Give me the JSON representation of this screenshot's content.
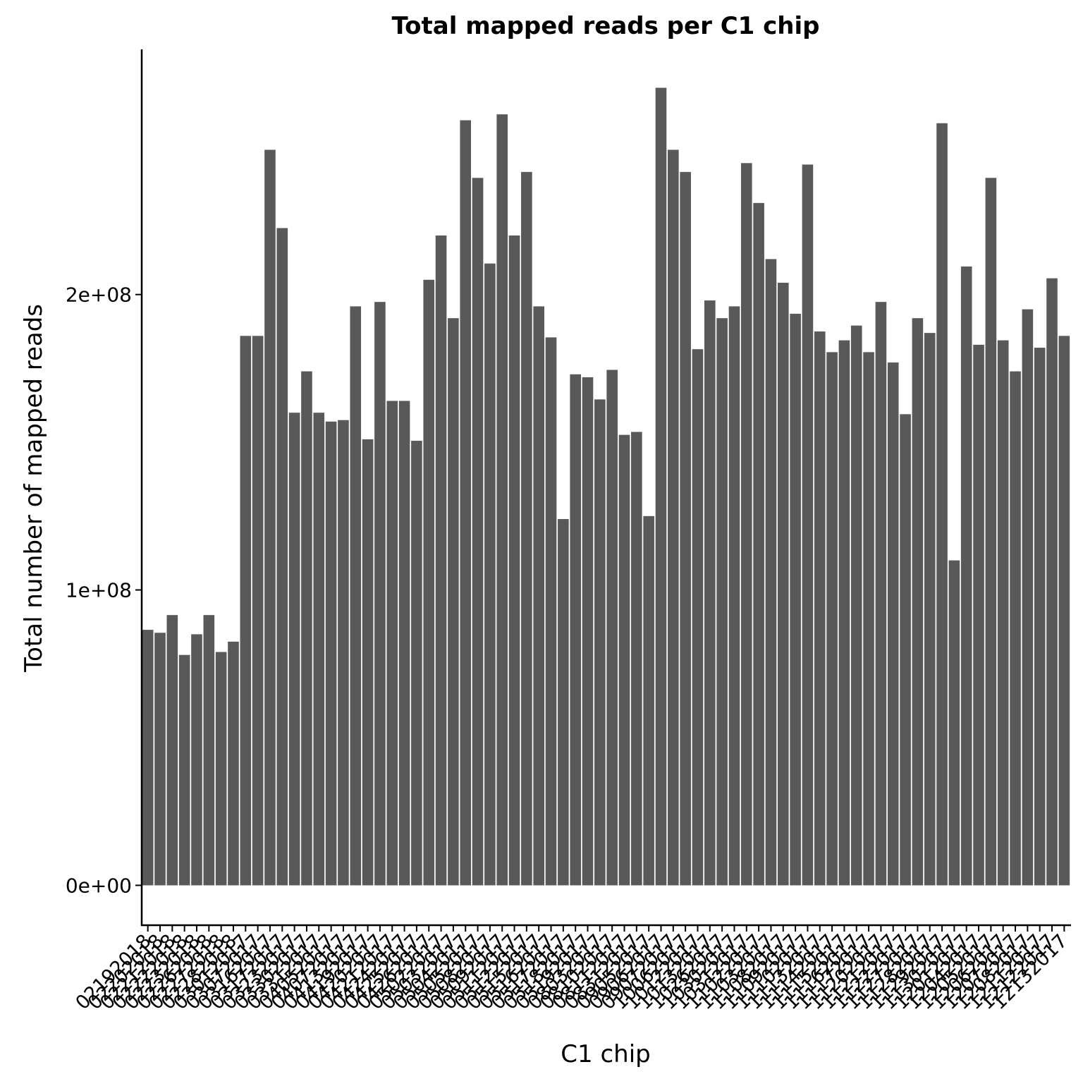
{
  "chart_data": {
    "type": "bar",
    "title": "Total mapped reads per C1 chip",
    "xlabel": "C1 chip",
    "ylabel": "Total number of mapped reads",
    "ylim": [
      -13500000,
      283000000
    ],
    "yticks": [
      0,
      100000000,
      200000000
    ],
    "ytick_labels": [
      "0e+00",
      "1e+08",
      "2e+08"
    ],
    "bar_color": "#595959",
    "grid": false,
    "legend": "none",
    "categories": [
      "02192018",
      "02202018",
      "02212018",
      "02222018",
      "02232018",
      "02262018",
      "02272018",
      "02282018",
      "03012017",
      "03072017",
      "03162017",
      "03172017",
      "03232017",
      "03302017",
      "03312017",
      "04052017",
      "04072017",
      "04132017",
      "04192017",
      "04202017",
      "04212017",
      "04242017",
      "04252017",
      "04262017",
      "05022017",
      "05032017",
      "05042017",
      "05052017",
      "05082017",
      "05092017",
      "05112017",
      "05122017",
      "05152017",
      "05162017",
      "05172017",
      "05182017",
      "05192017",
      "08032017",
      "08102017",
      "08112017",
      "08312017",
      "09052017",
      "09062017",
      "09072017",
      "10062017",
      "10122017",
      "10132017",
      "10262017",
      "10302017",
      "10312017",
      "11022017",
      "11032017",
      "11082017",
      "11092017",
      "11102017",
      "11132017",
      "11142017",
      "11152017",
      "11162017",
      "11172017",
      "11202017",
      "11212017",
      "11222017",
      "11272017",
      "11282017",
      "11292017",
      "11302017",
      "12012017",
      "12042017",
      "12052017",
      "12062017",
      "12072017",
      "12082017",
      "12112017",
      "12122017",
      "12132017"
    ],
    "values": [
      86500000,
      85500000,
      91500000,
      78000000,
      85000000,
      91500000,
      79000000,
      82500000,
      186000000,
      186000000,
      249000000,
      222500000,
      160000000,
      174000000,
      160000000,
      157000000,
      157500000,
      196000000,
      151000000,
      197500000,
      164000000,
      164000000,
      150500000,
      205000000,
      220000000,
      192000000,
      259000000,
      239500000,
      210500000,
      261000000,
      220000000,
      241500000,
      196000000,
      185500000,
      124000000,
      173000000,
      172000000,
      164500000,
      174500000,
      152500000,
      153500000,
      125000000,
      270000000,
      249000000,
      241500000,
      181500000,
      198000000,
      192000000,
      196000000,
      244500000,
      231000000,
      212000000,
      204000000,
      193500000,
      244000000,
      187500000,
      180500000,
      184500000,
      189500000,
      180500000,
      197500000,
      177000000,
      159500000,
      192000000,
      187000000,
      258000000,
      110000000,
      209500000,
      183000000,
      239500000,
      184500000,
      174000000,
      195000000,
      182000000,
      205500000,
      186000000
    ]
  }
}
